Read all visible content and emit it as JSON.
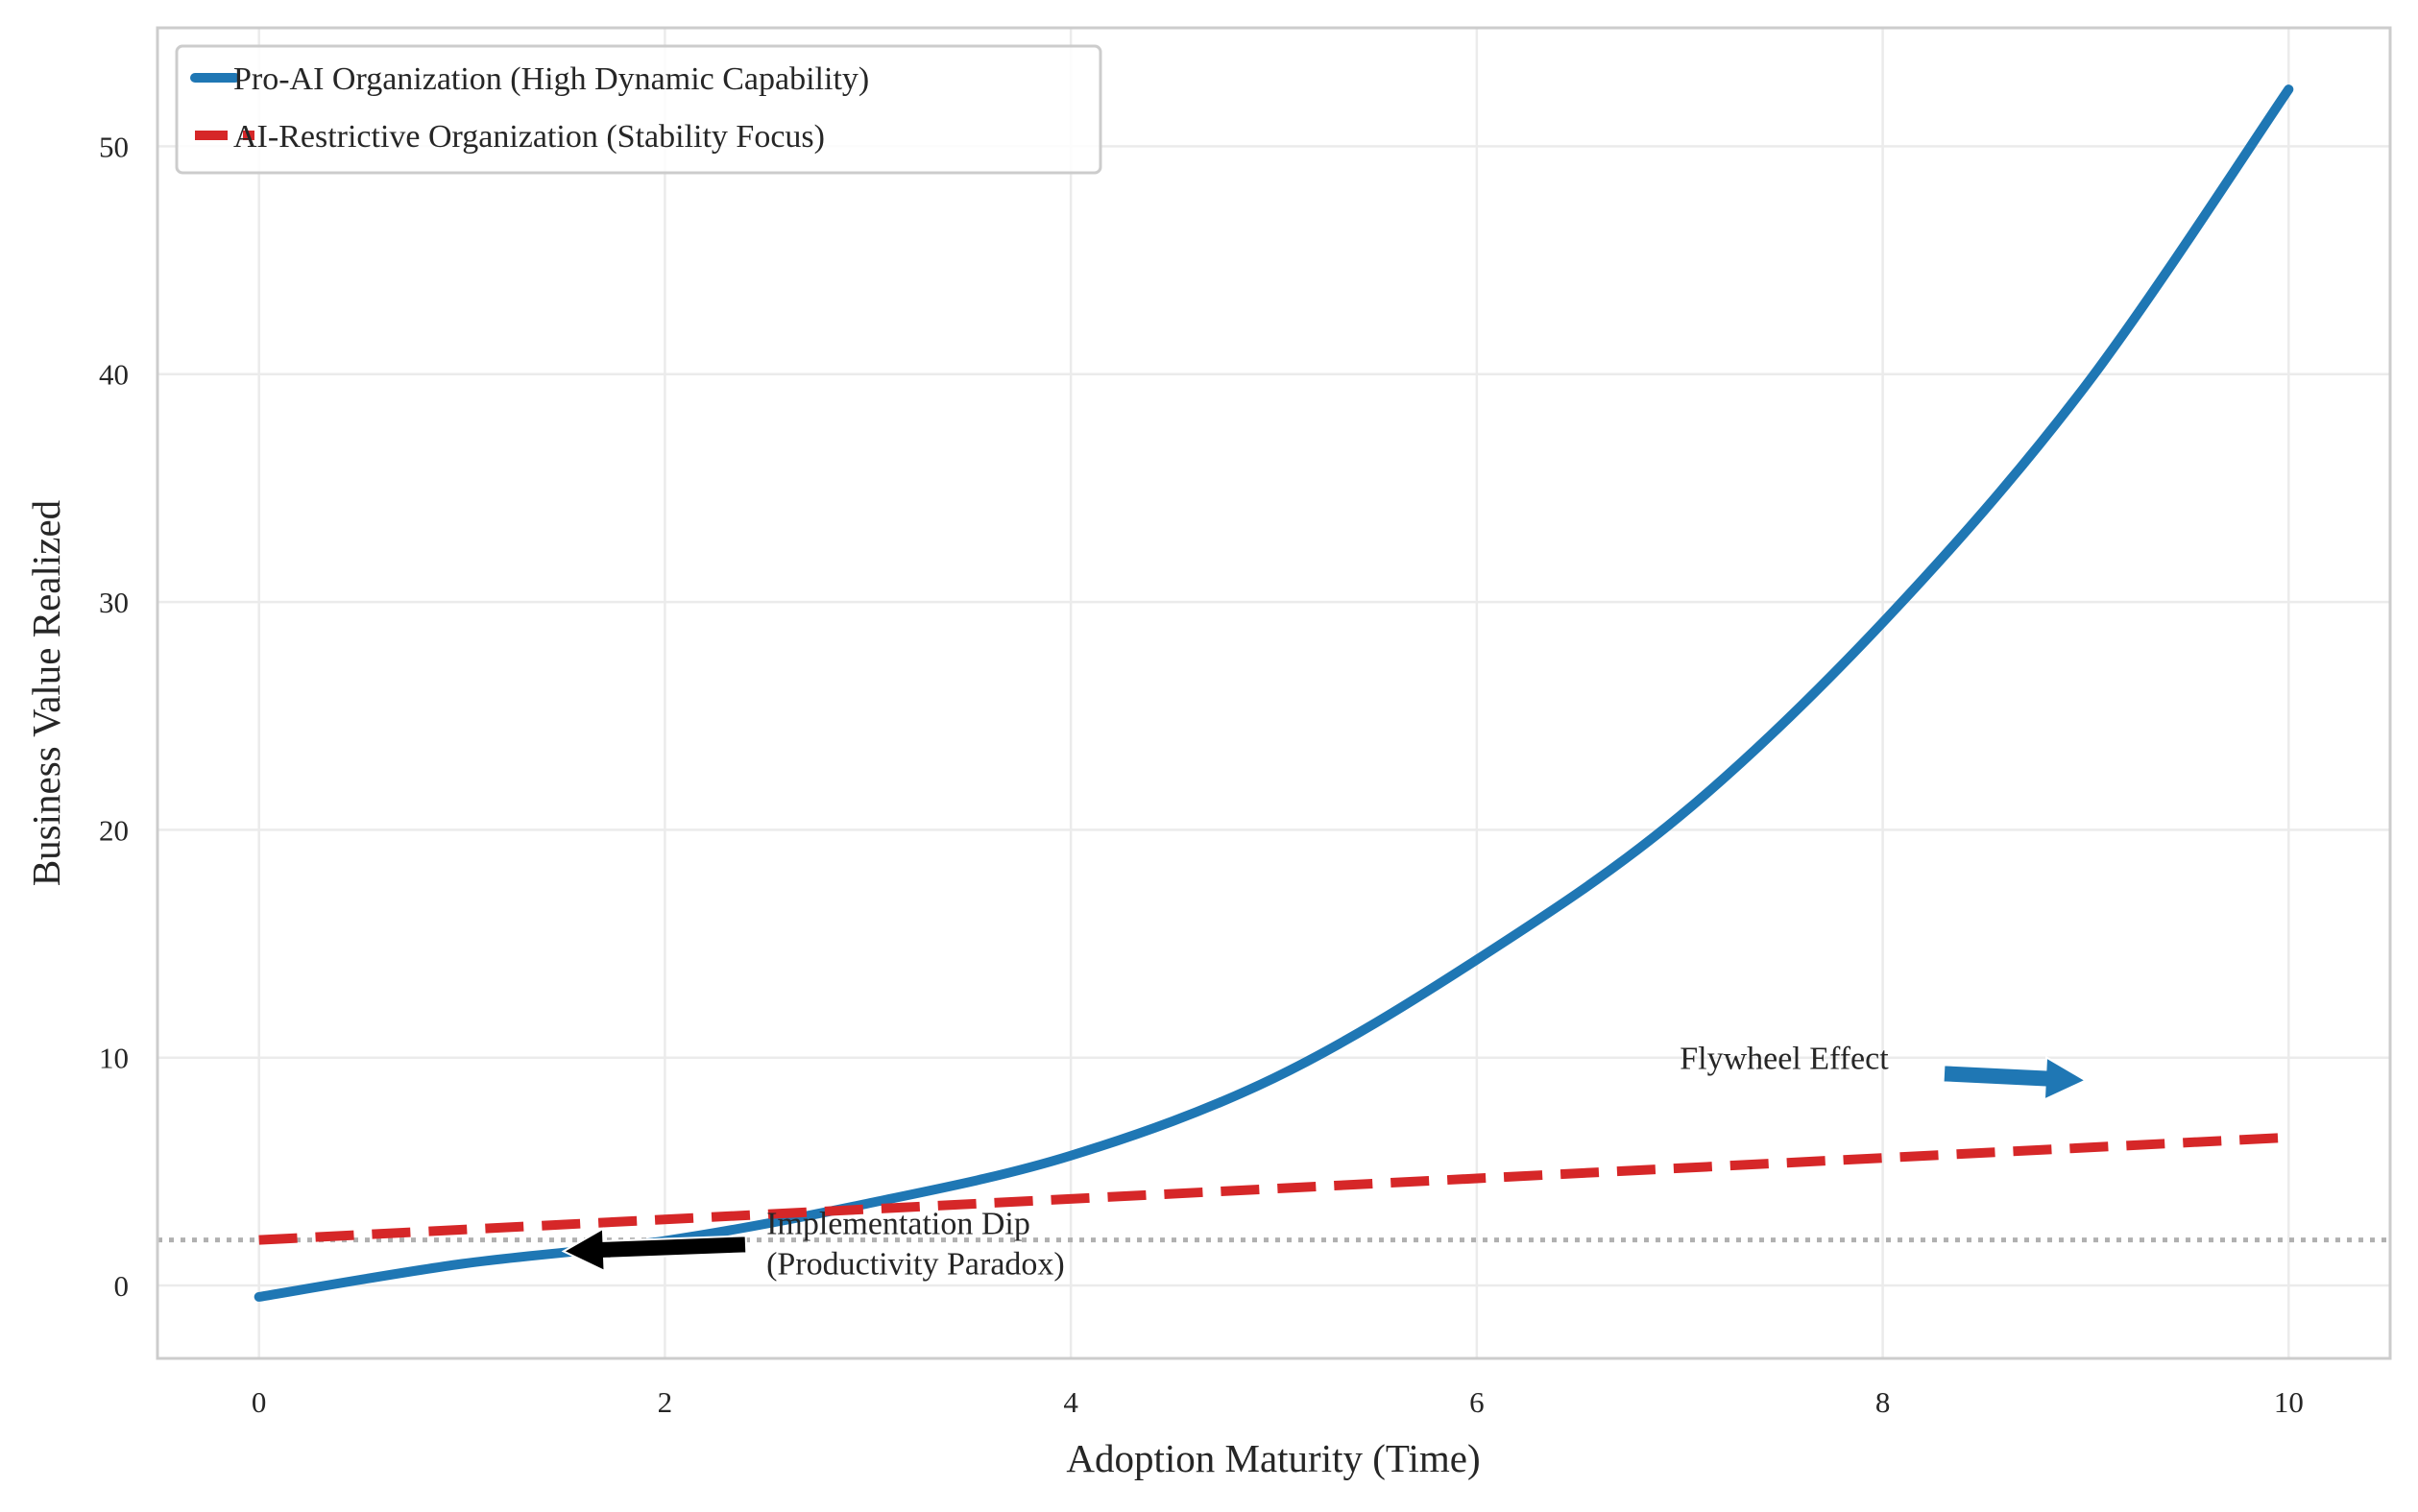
{
  "chart_data": {
    "type": "line",
    "xlabel": "Adoption Maturity (Time)",
    "ylabel": "Business Value Realized",
    "xlim": [
      -0.5,
      10.5
    ],
    "ylim": [
      -3.2,
      55.2
    ],
    "xticks": [
      0,
      2,
      4,
      6,
      8,
      10
    ],
    "yticks": [
      0,
      10,
      20,
      30,
      40,
      50
    ],
    "grid": true,
    "legend_placement": "top-left",
    "series": [
      {
        "name": "Pro-AI Organization (High Dynamic Capability)",
        "color": "#1f77b4",
        "style": "solid",
        "x": [
          0,
          1,
          2,
          3,
          4,
          5,
          6,
          7,
          8,
          9,
          10
        ],
        "y": [
          -0.5,
          0.95,
          1.96,
          3.6,
          5.7,
          9.1,
          14.3,
          20.6,
          29.1,
          39.5,
          52.5
        ]
      },
      {
        "name": "AI-Restrictive Organization (Stability Focus)",
        "color": "#d62728",
        "style": "dashed",
        "x": [
          0,
          10
        ],
        "y": [
          2.0,
          6.5
        ]
      }
    ],
    "reference_line": {
      "y": 2,
      "color": "#b0b0b0",
      "style": "dotted"
    },
    "annotations": [
      {
        "text": [
          "Implementation Dip",
          "(Productivity Paradox)"
        ],
        "text_xy": [
          2.5,
          2.0
        ],
        "arrow_to": [
          1.5,
          1.5
        ],
        "arrow_color": "#000000"
      },
      {
        "text": [
          "Flywheel Effect"
        ],
        "text_xy": [
          7.0,
          10.0
        ],
        "arrow_from": [
          8.3,
          9.3
        ],
        "arrow_to": [
          9.0,
          9.0
        ],
        "arrow_color": "#1f77b4"
      }
    ]
  }
}
